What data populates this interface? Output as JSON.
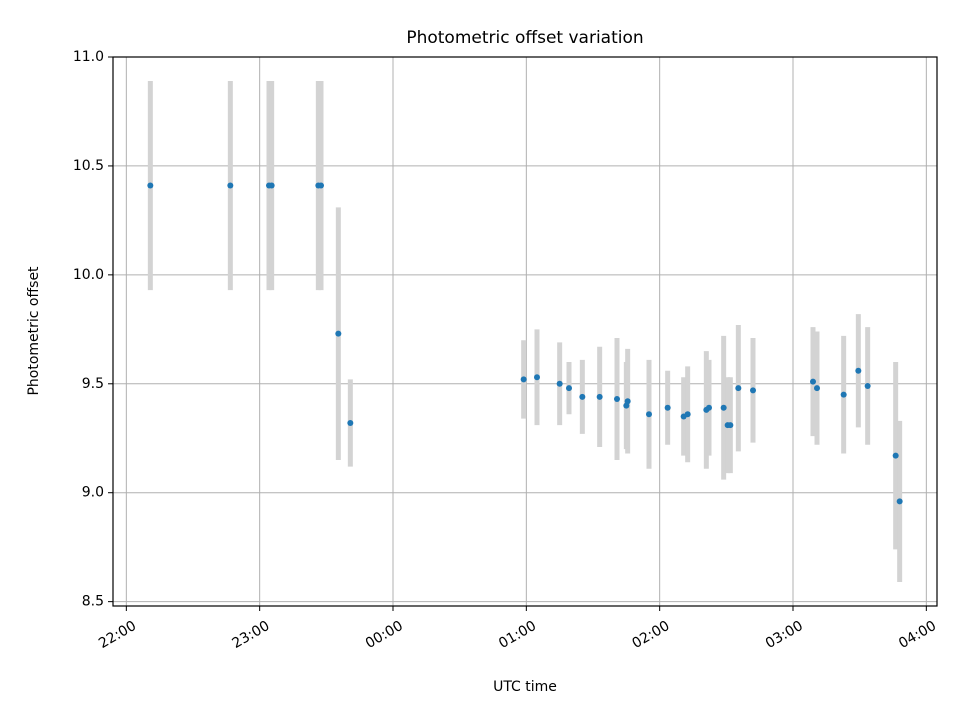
{
  "chart_data": {
    "type": "scatter",
    "title": "Photometric offset variation",
    "xlabel": "UTC time",
    "ylabel": "Photometric offset",
    "x_unit": "UTC hours past 22:00",
    "xlim": [
      -0.1,
      6.08
    ],
    "ylim": [
      8.48,
      11.0
    ],
    "grid": true,
    "x_ticks": [
      {
        "value": 0,
        "label": "22:00"
      },
      {
        "value": 1,
        "label": "23:00"
      },
      {
        "value": 2,
        "label": "00:00"
      },
      {
        "value": 3,
        "label": "01:00"
      },
      {
        "value": 4,
        "label": "02:00"
      },
      {
        "value": 5,
        "label": "03:00"
      },
      {
        "value": 6,
        "label": "04:00"
      }
    ],
    "y_ticks": [
      {
        "value": 8.5,
        "label": "8.5"
      },
      {
        "value": 9.0,
        "label": "9.0"
      },
      {
        "value": 9.5,
        "label": "9.5"
      },
      {
        "value": 10.0,
        "label": "10.0"
      },
      {
        "value": 10.5,
        "label": "10.5"
      },
      {
        "value": 11.0,
        "label": "11.0"
      }
    ],
    "colors": {
      "points": "#1f77b4",
      "errorbars": "#d3d3d3",
      "grid": "#b0b0b0"
    },
    "points": [
      {
        "x": 0.18,
        "y": 10.41,
        "yerr": 0.48
      },
      {
        "x": 0.78,
        "y": 10.41,
        "yerr": 0.48
      },
      {
        "x": 1.07,
        "y": 10.41,
        "yerr": 0.48
      },
      {
        "x": 1.09,
        "y": 10.41,
        "yerr": 0.48
      },
      {
        "x": 1.44,
        "y": 10.41,
        "yerr": 0.48
      },
      {
        "x": 1.46,
        "y": 10.41,
        "yerr": 0.48
      },
      {
        "x": 1.59,
        "y": 9.73,
        "yerr": 0.58
      },
      {
        "x": 1.68,
        "y": 9.32,
        "yerr": 0.2
      },
      {
        "x": 2.98,
        "y": 9.52,
        "yerr": 0.18
      },
      {
        "x": 3.08,
        "y": 9.53,
        "yerr": 0.22
      },
      {
        "x": 3.25,
        "y": 9.5,
        "yerr": 0.19
      },
      {
        "x": 3.32,
        "y": 9.48,
        "yerr": 0.12
      },
      {
        "x": 3.42,
        "y": 9.44,
        "yerr": 0.17
      },
      {
        "x": 3.55,
        "y": 9.44,
        "yerr": 0.23
      },
      {
        "x": 3.68,
        "y": 9.43,
        "yerr": 0.28
      },
      {
        "x": 3.75,
        "y": 9.4,
        "yerr": 0.2
      },
      {
        "x": 3.76,
        "y": 9.42,
        "yerr": 0.24
      },
      {
        "x": 3.92,
        "y": 9.36,
        "yerr": 0.25
      },
      {
        "x": 4.06,
        "y": 9.39,
        "yerr": 0.17
      },
      {
        "x": 4.18,
        "y": 9.35,
        "yerr": 0.18
      },
      {
        "x": 4.21,
        "y": 9.36,
        "yerr": 0.22
      },
      {
        "x": 4.35,
        "y": 9.38,
        "yerr": 0.27
      },
      {
        "x": 4.37,
        "y": 9.39,
        "yerr": 0.22
      },
      {
        "x": 4.48,
        "y": 9.39,
        "yerr": 0.33
      },
      {
        "x": 4.51,
        "y": 9.31,
        "yerr": 0.22
      },
      {
        "x": 4.53,
        "y": 9.31,
        "yerr": 0.22
      },
      {
        "x": 4.59,
        "y": 9.48,
        "yerr": 0.29
      },
      {
        "x": 4.7,
        "y": 9.47,
        "yerr": 0.24
      },
      {
        "x": 5.15,
        "y": 9.51,
        "yerr": 0.25
      },
      {
        "x": 5.18,
        "y": 9.48,
        "yerr": 0.26
      },
      {
        "x": 5.38,
        "y": 9.45,
        "yerr": 0.27
      },
      {
        "x": 5.49,
        "y": 9.56,
        "yerr": 0.26
      },
      {
        "x": 5.56,
        "y": 9.49,
        "yerr": 0.27
      },
      {
        "x": 5.77,
        "y": 9.17,
        "yerr": 0.43
      },
      {
        "x": 5.8,
        "y": 8.96,
        "yerr": 0.37
      }
    ]
  }
}
